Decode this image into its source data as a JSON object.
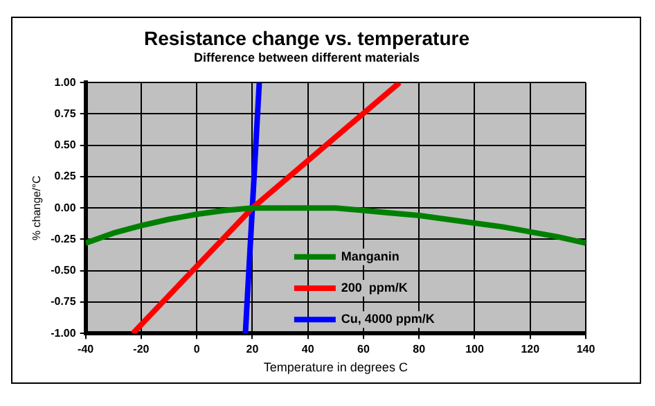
{
  "chart_data": {
    "type": "line",
    "title": "Resistance change vs. temperature",
    "subtitle": "Difference between different materials",
    "xlabel": "Temperature in degrees C",
    "ylabel": "% change/°C",
    "xlim": [
      -40,
      140
    ],
    "xticks": [
      -40,
      -20,
      0,
      20,
      40,
      60,
      80,
      100,
      120,
      140
    ],
    "ylim": [
      -1,
      1
    ],
    "yticks": [
      {
        "value": -1,
        "label": "-1.00"
      },
      {
        "value": -0.75,
        "label": "-0.75"
      },
      {
        "value": -0.5,
        "label": "-0.50"
      },
      {
        "value": -0.25,
        "label": "-0.25"
      },
      {
        "value": 0,
        "label": "0.00"
      },
      {
        "value": 0.25,
        "label": "0.25"
      },
      {
        "value": 0.5,
        "label": "0.50"
      },
      {
        "value": 0.75,
        "label": "0.75"
      },
      {
        "value": 1,
        "label": "1.00"
      }
    ],
    "grid": true,
    "legend": "bottom",
    "marker": "none",
    "line_style": "solid",
    "series": [
      {
        "name": "Manganin",
        "color": "#008000",
        "x": [
          -40,
          -30,
          -20,
          -10,
          0,
          10,
          20,
          30,
          40,
          50,
          60,
          70,
          80,
          90,
          100,
          110,
          120,
          130,
          140
        ],
        "values": [
          -0.28,
          -0.2,
          -0.14,
          -0.09,
          -0.05,
          -0.02,
          0,
          0,
          0,
          0,
          -0.02,
          -0.04,
          -0.06,
          -0.09,
          -0.12,
          -0.15,
          -0.19,
          -0.23,
          -0.28
        ]
      },
      {
        "name": "200  ppm/K",
        "color": "#ff0000",
        "x": [
          -23,
          20,
          73
        ],
        "values": [
          -1,
          0,
          1
        ]
      },
      {
        "name": "Cu, 4000 ppm/K",
        "color": "#0000ff",
        "x": [
          17.5,
          22.5
        ],
        "values": [
          -1,
          1
        ]
      }
    ]
  }
}
